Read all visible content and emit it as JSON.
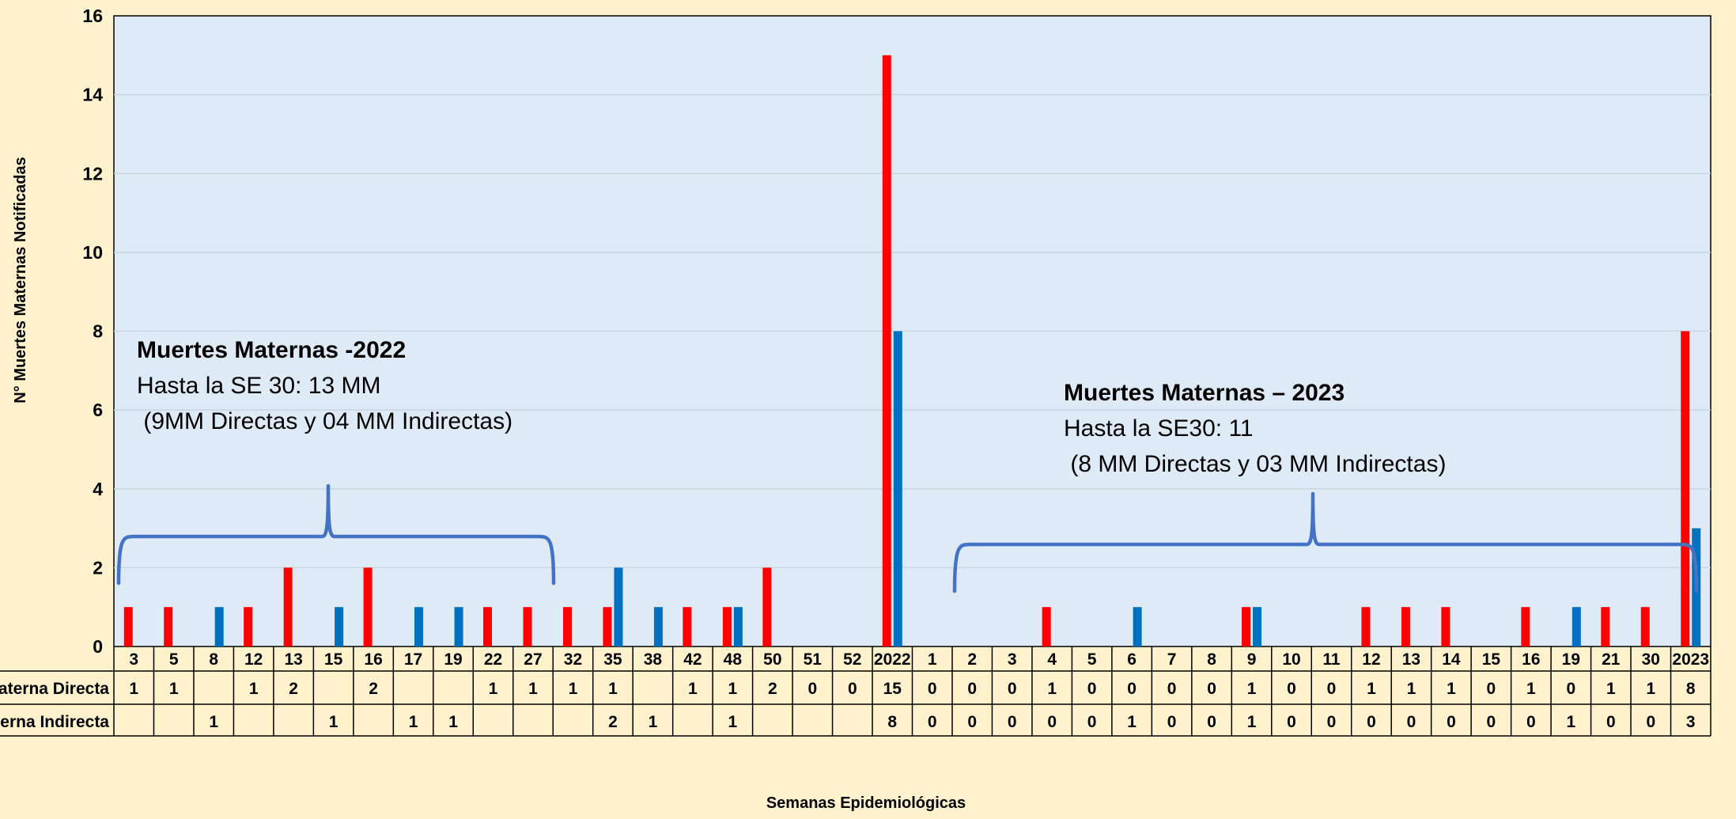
{
  "chart_data": {
    "type": "bar",
    "xlabel": "Semanas Epidemiológicas",
    "ylabel": "N° Muertes Maternas Notificadas",
    "ylim": [
      0,
      16
    ],
    "yticks": [
      "0",
      "2",
      "4",
      "6",
      "8",
      "10",
      "12",
      "14",
      "16"
    ],
    "grid": true,
    "categories": [
      "3",
      "5",
      "8",
      "12",
      "13",
      "15",
      "16",
      "17",
      "19",
      "22",
      "27",
      "32",
      "35",
      "38",
      "42",
      "48",
      "50",
      "51",
      "52",
      "2022",
      "1",
      "2",
      "3",
      "4",
      "5",
      "6",
      "7",
      "8",
      "9",
      "10",
      "11",
      "12",
      "13",
      "14",
      "15",
      "16",
      "19",
      "21",
      "30",
      "2023"
    ],
    "series": [
      {
        "name": "Muerte Materna Directa",
        "color": "#FF0000",
        "values": [
          1,
          1,
          null,
          1,
          2,
          null,
          2,
          null,
          null,
          1,
          1,
          1,
          1,
          null,
          1,
          1,
          2,
          0,
          0,
          15,
          0,
          0,
          0,
          1,
          0,
          0,
          0,
          0,
          1,
          0,
          0,
          1,
          1,
          1,
          0,
          1,
          0,
          1,
          1,
          8
        ],
        "labels": [
          "1",
          "1",
          "",
          "1",
          "2",
          "",
          "2",
          "",
          "",
          "1",
          "1",
          "1",
          "1",
          "",
          "1",
          "1",
          "2",
          "0",
          "0",
          "15",
          "0",
          "0",
          "0",
          "1",
          "0",
          "0",
          "0",
          "0",
          "1",
          "0",
          "0",
          "1",
          "1",
          "1",
          "0",
          "1",
          "0",
          "1",
          "1",
          "8"
        ]
      },
      {
        "name": "Muerte Materna Indirecta",
        "color": "#0070C0",
        "values": [
          null,
          null,
          1,
          null,
          null,
          1,
          null,
          1,
          1,
          null,
          null,
          null,
          2,
          1,
          null,
          1,
          null,
          null,
          null,
          8,
          0,
          0,
          0,
          0,
          0,
          1,
          0,
          0,
          1,
          0,
          0,
          0,
          0,
          0,
          0,
          0,
          1,
          0,
          0,
          3
        ],
        "labels": [
          "",
          "",
          "1",
          "",
          "",
          "1",
          "",
          "1",
          "1",
          "",
          "",
          "",
          "2",
          "1",
          "",
          "1",
          "",
          "",
          "",
          "8",
          "0",
          "0",
          "0",
          "0",
          "0",
          "1",
          "0",
          "0",
          "1",
          "0",
          "0",
          "0",
          "0",
          "0",
          "0",
          "0",
          "1",
          "0",
          "0",
          "3"
        ]
      }
    ],
    "table_row_labels": [
      "Muerte Materna Directa",
      "Muerte Materna Indirecta"
    ],
    "annotations": [
      {
        "title": "Muertes Maternas -2022",
        "lines": [
          "Hasta la SE 30: 13 MM",
          " (9MM Directas y 04 MM Indirectas)"
        ]
      },
      {
        "title": "Muertes Maternas – 2023",
        "lines": [
          "Hasta la SE30: 11",
          " (8 MM Directas y 03 MM Indirectas)"
        ]
      }
    ],
    "colors": {
      "background": "#FFF2CC",
      "plot_area": "#DEEBF7",
      "brace": "#4472C4"
    }
  }
}
